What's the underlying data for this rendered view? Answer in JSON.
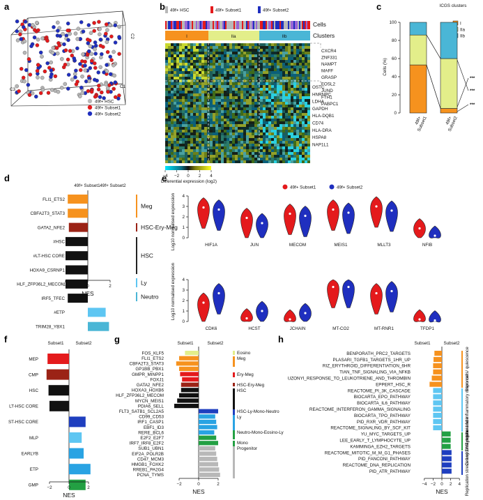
{
  "figure": {
    "colors": {
      "red": "#e41a1c",
      "blue": "#1f2fbf",
      "gray": "#b8b8b8",
      "orange": "#f6921e",
      "lightgreen": "#e3ee8a",
      "teal": "#4ab6d6",
      "darkred": "#9b2316",
      "black": "#111111",
      "lightblue": "#5ec6f2",
      "midblue": "#29a3e3",
      "green": "#23a043",
      "navy": "#1f3fbf"
    }
  },
  "panel_a": {
    "label": "a",
    "axis_c1": "C1",
    "axis_c2": "C2",
    "axis_c3": "C3",
    "ticks_c1": [
      "−4",
      "−2",
      "0",
      "2",
      "4"
    ],
    "ticks_c2": [
      "−4",
      "−2",
      "0",
      "2",
      "4"
    ],
    "ticks_c3": [
      "−4",
      "−2",
      "0",
      "2",
      "4"
    ],
    "legend": [
      "49f+ HSC",
      "49f+ Subset1",
      "49f+ Subset2"
    ]
  },
  "panel_b": {
    "label": "b",
    "legend": [
      "49f+ HSC",
      "49f+ Subset1",
      "49f+ Subset2"
    ],
    "row_cells": "Cells",
    "row_clusters": "Clusters",
    "clusters": [
      "I",
      "IIa",
      "IIb"
    ],
    "genes_top": [
      "CXCR4",
      "ZNF331",
      "NAMPT",
      "MAFF",
      "GRASP",
      "FOSL2",
      "JUND",
      "FTH1",
      "PABPC1"
    ],
    "genes_bottom": [
      "OSTC",
      "HNRNPC",
      "LDHA",
      "GAPDH",
      "HLA-DQB1",
      "CD74",
      "HLA-DRA",
      "HSPA8",
      "NAP1L1"
    ],
    "scale_ticks": [
      "−4",
      "−2",
      "0",
      "2",
      "4"
    ],
    "scale_label": "Differential expression (log2)"
  },
  "panel_c": {
    "label": "c",
    "legend_title": "ICGS clusters",
    "legend": [
      "I",
      "IIa",
      "IIb"
    ],
    "ylabel": "Cells (%)",
    "yticks": [
      "0",
      "20",
      "40",
      "60",
      "80",
      "100"
    ],
    "bars": [
      "49f+ Subset1",
      "49f+ Subset2"
    ],
    "signif": [
      "***",
      "***",
      "***"
    ]
  },
  "panel_d": {
    "label": "d",
    "col1": "49f+ Subset1",
    "col2": "49f+ Subset2",
    "xlabel": "NES",
    "xticks": [
      "−2",
      "0",
      "2"
    ],
    "groups": [
      "Meg",
      "HSC-Ery-Meg",
      "HSC",
      "Ly",
      "Neutro"
    ]
  },
  "panel_e": {
    "label": "e",
    "legend": [
      "49f+ Subset1",
      "49f+ Subset2"
    ],
    "ylabel": "Log10 normalised expression",
    "yticks": [
      "0",
      "1",
      "2",
      "3",
      "4"
    ],
    "genes_top": [
      "HIF1A",
      "JUN",
      "MECOM",
      "MEIS1",
      "MLLT3",
      "NFIB"
    ],
    "genes_bottom": [
      "CDK6",
      "HCST",
      "JCHAIN",
      "MT-CO2",
      "MT-RNR1",
      "TFDP1"
    ]
  },
  "panel_f": {
    "label": "f",
    "col1": "Subset1",
    "col2": "Subset2",
    "xlabel": "NES",
    "xticks": [
      "−2",
      "0",
      "2"
    ]
  },
  "panel_g": {
    "label": "g",
    "col1": "Subset1",
    "col2": "Subset2",
    "xlabel": "NES",
    "xticks": [
      "−2",
      "0",
      "2"
    ],
    "groups": [
      "Eosino",
      "Meg",
      "Ery-Meg",
      "HSC-Ery-Meg",
      "HSC",
      "HSC-Ly-Mono-Neutro",
      "Ly",
      "Neutro-Mono-Eosino-Ly",
      "Mono",
      "Progenitor"
    ]
  },
  "panel_h": {
    "label": "h",
    "col1": "Subset1",
    "col2": "Subset2",
    "xlabel": "NES",
    "xticks": [
      "−4",
      "−2",
      "0",
      "2",
      "4"
    ],
    "groups": [
      "Stem cells/ quiescence",
      "Cytokine and inflammatory response",
      "Cell cycle/ Lymphoid fate",
      "Replication stress and DNA repair"
    ]
  },
  "chart_data": [
    {
      "type": "bar",
      "id": "d",
      "orientation": "horizontal",
      "xlabel": "NES",
      "xlim": [
        -3,
        3
      ],
      "categories": [
        "FLI1_ETS2",
        "CBFA2T3_STAT3",
        "GATA2_NFE2",
        "#HSC",
        "#LT-HSC CORE",
        "HOXA9_CSRNP1",
        "HLF_ZFP36L2_MECOM",
        "IRF5_TFEC",
        "#ETP",
        "TRIM28_YBX1"
      ],
      "values": [
        -1.8,
        -1.8,
        -1.7,
        -2.0,
        -2.0,
        -2.0,
        -2.0,
        -1.8,
        1.6,
        1.9
      ],
      "colors": [
        "orange",
        "orange",
        "darkred",
        "black",
        "black",
        "black",
        "black",
        "black",
        "lightblue",
        "teal"
      ]
    },
    {
      "type": "bar",
      "id": "c",
      "orientation": "vertical-stacked",
      "ylabel": "Cells (%)",
      "ylim": [
        0,
        100
      ],
      "categories": [
        "49f+ Subset1",
        "49f+ Subset2"
      ],
      "series": [
        {
          "name": "I",
          "values": [
            53,
            5
          ]
        },
        {
          "name": "IIa",
          "values": [
            33,
            55
          ]
        },
        {
          "name": "IIb",
          "values": [
            14,
            40
          ]
        }
      ]
    },
    {
      "type": "violin",
      "id": "e",
      "ylabel": "Log10 normalised expression",
      "ylim": [
        0,
        4
      ],
      "categories": [
        "HIF1A",
        "JUN",
        "MECOM",
        "MEIS1",
        "MLLT3",
        "NFIB",
        "CDK6",
        "HCST",
        "JCHAIN",
        "MT-CO2",
        "MT-RNR1",
        "TFDP1"
      ],
      "series": [
        {
          "name": "49f+ Subset1",
          "medians": [
            2.9,
            1.9,
            2.3,
            2.7,
            3.0,
            0.9,
            1.8,
            0.3,
            0.2,
            3.3,
            2.7,
            0.2
          ]
        },
        {
          "name": "49f+ Subset2",
          "medians": [
            2.7,
            1.4,
            2.1,
            2.4,
            2.6,
            0.2,
            2.7,
            1.0,
            0.8,
            3.3,
            2.9,
            0.1
          ]
        }
      ]
    },
    {
      "type": "bar",
      "id": "f",
      "orientation": "horizontal",
      "xlabel": "NES",
      "xlim": [
        -3,
        3
      ],
      "categories": [
        "MEP",
        "CMP",
        "HSC",
        "LT-HSC CORE",
        "ST-HSC CORE",
        "MLP",
        "EARLYB",
        "ETP",
        "GMP"
      ],
      "values": [
        -2.2,
        -2.3,
        -2.1,
        -2.0,
        1.7,
        1.3,
        1.5,
        2.2,
        1.7
      ],
      "colors": [
        "red",
        "darkred",
        "black",
        "black",
        "navy",
        "lightblue",
        "midblue",
        "midblue",
        "green"
      ]
    },
    {
      "type": "bar",
      "id": "g",
      "orientation": "horizontal",
      "xlabel": "NES",
      "xlim": [
        -3,
        3
      ],
      "categories": [
        "FOS_KLF5",
        "FLI1_ETS2",
        "CBFA2T3_STAT3",
        "GP1BB_PBX1",
        "GMPR_MINPP1",
        "FOXJ1",
        "GATA2_NFE2",
        "HOXA3_HOXB6",
        "HLF_ZFP36L2_MECOM",
        "MYCN_MEIS1",
        "PDIA6_SELL",
        "FLT3_SATB1_SCL2A5",
        "CD99_CD53",
        "IRF1_CASP1",
        "EBF1_ID3",
        "RERE_BCL6",
        "E2F2_E2F7",
        "IRF7_IRF8_E2F2",
        "SUB1_UBN1",
        "EIF2A_POLR2B",
        "CD47_MCM3",
        "HMGB1_FOXK2",
        "RREB1_PA2G4",
        "PCNA_TYMS"
      ],
      "values": [
        -1.4,
        -2.0,
        -2.3,
        -2.0,
        -1.9,
        -1.7,
        -1.8,
        -1.8,
        -2.0,
        -2.2,
        -2.5,
        2.0,
        1.7,
        1.8,
        1.9,
        1.6,
        1.8,
        2.0,
        1.7,
        1.8,
        1.9,
        2.0,
        2.1,
        2.2
      ],
      "colors": [
        "lightgreen",
        "orange",
        "orange",
        "orange",
        "red",
        "red",
        "darkred",
        "black",
        "black",
        "black",
        "black",
        "navy",
        "midblue",
        "midblue",
        "midblue",
        "midblue",
        "green",
        "green",
        "gray",
        "gray",
        "gray",
        "gray",
        "gray",
        "gray"
      ]
    },
    {
      "type": "bar",
      "id": "h",
      "orientation": "horizontal",
      "xlabel": "NES",
      "xlim": [
        -4.5,
        4.5
      ],
      "categories": [
        "BENPORATH_PRC2_TARGETS",
        "PLASARI_TGFB1_TARGETS_1HR_UP",
        "RIZ_ERYTHROID_DIFFERENTIATION_6HR",
        "TIAN_TNF_SIGNALING_VIA_NFKB",
        "UZONYI_RESPONSE_TO_LEUKOTRIENE_AND_THROMBIN",
        "EPPERT_HSC_R",
        "REACTOME_PI_3K_CASCADE",
        "BIOCARTA_EPO_PATHWAY",
        "BIOCARTA_IL6_PATHWAY",
        "REACTOME_INTERFERON_GAMMA_SIGNALING",
        "BIOCARTA_TPO_PATHWAY",
        "PID_RXR_VDR_PATHWAY",
        "REACTOME_SIGNALING_BY_SCF_KIT",
        "YU_MYC_TARGETS_UP",
        "LEE_EARLY_T_LYMPHOCYTE_UP",
        "KAMMINGA_EZH2_TARGETS",
        "REACTOME_MITOTIC_M_M_G1_PHASES",
        "PID_FANCONI_PATHWAY",
        "REACTOME_DNA_REPLICATION",
        "PID_ATR_PATHWAY"
      ],
      "values": [
        -1.7,
        -1.9,
        -2.0,
        -2.0,
        -2.3,
        -2.8,
        -2.0,
        -2.0,
        -2.0,
        -2.0,
        -2.0,
        -2.0,
        -2.0,
        2.0,
        2.0,
        2.0,
        2.2,
        2.2,
        2.2,
        2.2
      ],
      "colors": [
        "orange",
        "orange",
        "orange",
        "orange",
        "orange",
        "orange",
        "lightblue",
        "lightblue",
        "lightblue",
        "lightblue",
        "lightblue",
        "lightblue",
        "lightblue",
        "green",
        "green",
        "green",
        "navy",
        "navy",
        "navy",
        "navy"
      ]
    }
  ]
}
